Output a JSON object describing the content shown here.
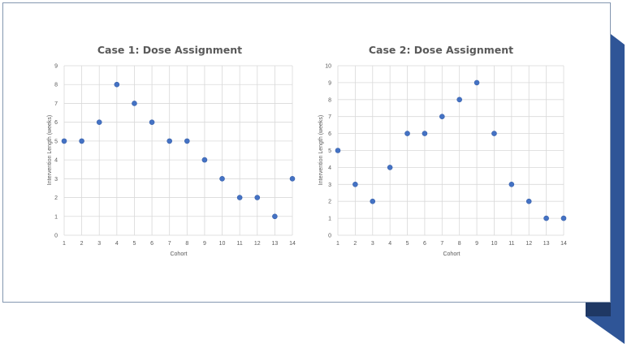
{
  "colors": {
    "slide_border": "#8497b0",
    "ribbon_light": "#2f5597",
    "ribbon_dark": "#1f3864",
    "gridline": "#d9d9d9",
    "marker": "#4472c4",
    "text": "#595959"
  },
  "chart_data": [
    {
      "type": "scatter",
      "title": "Case 1: Dose Assignment",
      "xlabel": "Cohort",
      "ylabel": "Intervention Length (weeks)",
      "xlim": [
        1,
        14
      ],
      "ylim": [
        0,
        9
      ],
      "xticks": [
        1,
        2,
        3,
        4,
        5,
        6,
        7,
        8,
        9,
        10,
        11,
        12,
        13,
        14
      ],
      "yticks": [
        0,
        1,
        2,
        3,
        4,
        5,
        6,
        7,
        8,
        9
      ],
      "grid": true,
      "legend": "none",
      "x": [
        1,
        2,
        3,
        4,
        5,
        6,
        7,
        8,
        9,
        10,
        11,
        12,
        13,
        14
      ],
      "y": [
        5,
        5,
        6,
        8,
        7,
        6,
        5,
        5,
        4,
        3,
        2,
        2,
        1,
        3
      ]
    },
    {
      "type": "scatter",
      "title": "Case 2: Dose Assignment",
      "xlabel": "Cohort",
      "ylabel": "Intervention Length (weeks)",
      "xlim": [
        1,
        14
      ],
      "ylim": [
        0,
        10
      ],
      "xticks": [
        1,
        2,
        3,
        4,
        5,
        6,
        7,
        8,
        9,
        10,
        11,
        12,
        13,
        14
      ],
      "yticks": [
        0,
        1,
        2,
        3,
        4,
        5,
        6,
        7,
        8,
        9,
        10
      ],
      "grid": true,
      "legend": "none",
      "x": [
        1,
        2,
        3,
        4,
        5,
        6,
        7,
        8,
        9,
        10,
        11,
        12,
        13,
        14
      ],
      "y": [
        5,
        3,
        2,
        4,
        6,
        6,
        7,
        8,
        9,
        6,
        3,
        2,
        1,
        1
      ]
    }
  ]
}
